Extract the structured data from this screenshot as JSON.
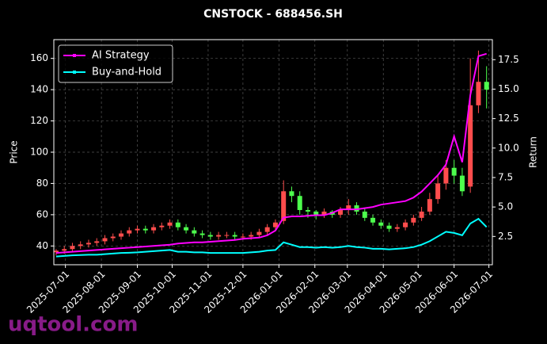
{
  "chart_data": {
    "type": "candlestick",
    "title": "CNSTOCK - 688456.SH",
    "ylabel": "Price",
    "y2label": "Return",
    "watermark": "uqtool.com",
    "x": [
      "2025-06-23",
      "2025-06-30",
      "2025-07-07",
      "2025-07-14",
      "2025-07-21",
      "2025-07-28",
      "2025-08-04",
      "2025-08-11",
      "2025-08-18",
      "2025-08-25",
      "2025-09-01",
      "2025-09-08",
      "2025-09-15",
      "2025-09-22",
      "2025-09-29",
      "2025-10-06",
      "2025-10-13",
      "2025-10-20",
      "2025-10-27",
      "2025-11-03",
      "2025-11-10",
      "2025-11-17",
      "2025-11-24",
      "2025-12-01",
      "2025-12-08",
      "2025-12-15",
      "2025-12-22",
      "2025-12-29",
      "2026-01-05",
      "2026-01-12",
      "2026-01-19",
      "2026-01-26",
      "2026-02-02",
      "2026-02-09",
      "2026-02-16",
      "2026-02-23",
      "2026-03-02",
      "2026-03-09",
      "2026-03-16",
      "2026-03-23",
      "2026-03-30",
      "2026-04-06",
      "2026-04-13",
      "2026-04-20",
      "2026-04-27",
      "2026-05-04",
      "2026-05-11",
      "2026-05-18",
      "2026-05-25",
      "2026-06-01",
      "2026-06-08",
      "2026-06-15",
      "2026-06-22",
      "2026-06-29"
    ],
    "open": [
      36,
      37,
      38,
      40,
      41,
      42,
      43,
      45,
      46,
      48,
      50,
      51,
      50,
      52,
      53,
      55,
      52,
      50,
      48,
      47,
      46,
      47,
      47,
      46,
      46,
      47,
      49,
      52,
      56,
      75,
      72,
      63,
      62,
      60,
      62,
      60,
      63,
      66,
      62,
      58,
      55,
      53,
      51,
      52,
      55,
      58,
      62,
      70,
      80,
      90,
      85,
      78,
      130,
      145
    ],
    "high": [
      38,
      40,
      42,
      43,
      44,
      45,
      47,
      48,
      50,
      52,
      53,
      53,
      54,
      55,
      57,
      57,
      54,
      52,
      50,
      49,
      49,
      49,
      49,
      48,
      49,
      51,
      54,
      57,
      82,
      78,
      75,
      65,
      63,
      64,
      63,
      65,
      70,
      68,
      64,
      60,
      57,
      55,
      54,
      57,
      60,
      65,
      74,
      85,
      95,
      95,
      90,
      160,
      165,
      155
    ],
    "low": [
      34,
      35,
      36,
      38,
      39,
      40,
      41,
      43,
      44,
      46,
      48,
      48,
      48,
      50,
      51,
      50,
      48,
      46,
      45,
      44,
      44,
      45,
      44,
      44,
      44,
      45,
      47,
      50,
      54,
      68,
      60,
      58,
      57,
      58,
      58,
      58,
      60,
      60,
      56,
      53,
      51,
      49,
      49,
      50,
      53,
      56,
      60,
      67,
      76,
      80,
      72,
      74,
      125,
      128
    ],
    "close": [
      37,
      38,
      40,
      41,
      42,
      43,
      45,
      46,
      48,
      50,
      51,
      50,
      52,
      53,
      55,
      52,
      50,
      48,
      47,
      46,
      47,
      47,
      46,
      46,
      47,
      49,
      52,
      55,
      75,
      72,
      63,
      62,
      60,
      62,
      60,
      63,
      66,
      62,
      58,
      55,
      53,
      51,
      52,
      55,
      58,
      62,
      70,
      80,
      90,
      85,
      75,
      130,
      145,
      140
    ],
    "up_color": "#ff4d4d",
    "down_color": "#4dff4d",
    "series": [
      {
        "name": "AI Strategy",
        "color": "#ff00ff",
        "axis": "y2",
        "values": [
          1.1,
          1.15,
          1.2,
          1.25,
          1.3,
          1.35,
          1.4,
          1.45,
          1.5,
          1.55,
          1.6,
          1.65,
          1.7,
          1.75,
          1.8,
          1.9,
          1.95,
          2.0,
          2.0,
          2.05,
          2.1,
          2.15,
          2.2,
          2.3,
          2.35,
          2.4,
          2.6,
          3.0,
          4.1,
          4.2,
          4.2,
          4.25,
          4.3,
          4.3,
          4.5,
          4.8,
          4.8,
          4.8,
          4.9,
          5.0,
          5.2,
          5.3,
          5.4,
          5.5,
          5.8,
          6.3,
          7.0,
          7.7,
          8.6,
          11.0,
          8.8,
          14.5,
          17.8,
          18.0
        ]
      },
      {
        "name": "Buy-and-Hold",
        "color": "#00ffff",
        "axis": "y2",
        "values": [
          0.8,
          0.85,
          0.9,
          0.92,
          0.95,
          0.95,
          1.0,
          1.05,
          1.1,
          1.12,
          1.15,
          1.2,
          1.25,
          1.3,
          1.35,
          1.2,
          1.2,
          1.15,
          1.15,
          1.1,
          1.1,
          1.1,
          1.1,
          1.1,
          1.15,
          1.2,
          1.3,
          1.35,
          2.0,
          1.8,
          1.6,
          1.6,
          1.55,
          1.6,
          1.55,
          1.6,
          1.7,
          1.6,
          1.55,
          1.45,
          1.45,
          1.4,
          1.45,
          1.5,
          1.6,
          1.8,
          2.1,
          2.5,
          2.9,
          2.8,
          2.6,
          3.6,
          4.0,
          3.3
        ]
      }
    ],
    "xlim": [
      "2025-06-21",
      "2026-07-04"
    ],
    "xticks": [
      "2025-07-01",
      "2025-08-01",
      "2025-09-01",
      "2025-10-01",
      "2025-11-01",
      "2025-12-01",
      "2026-01-01",
      "2026-02-01",
      "2026-03-01",
      "2026-04-01",
      "2026-05-01",
      "2026-06-01",
      "2026-07-01"
    ],
    "ylim": [
      28,
      172
    ],
    "yticks": [
      40,
      60,
      80,
      100,
      120,
      140,
      160
    ],
    "y2lim": [
      0.1,
      19.2
    ],
    "y2ticks": [
      2.5,
      {
        "value": 5,
        "label": "5.0"
      },
      7.5,
      {
        "value": 10,
        "label": "10.0"
      },
      12.5,
      {
        "value": 15,
        "label": "15.0"
      },
      17.5
    ],
    "grid": true,
    "legend": "upper left"
  }
}
